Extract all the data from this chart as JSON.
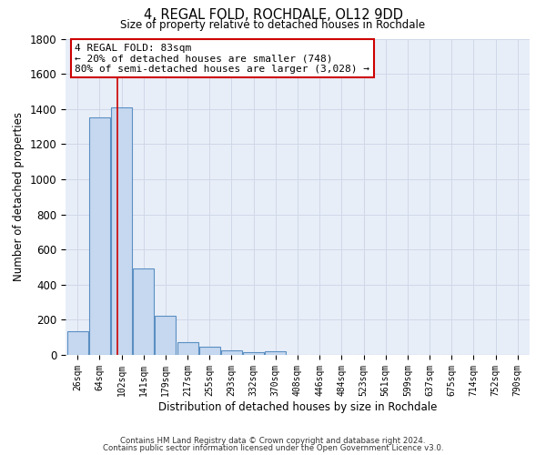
{
  "title": "4, REGAL FOLD, ROCHDALE, OL12 9DD",
  "subtitle": "Size of property relative to detached houses in Rochdale",
  "xlabel": "Distribution of detached houses by size in Rochdale",
  "ylabel": "Number of detached properties",
  "bar_values": [
    135,
    1350,
    1410,
    490,
    225,
    75,
    45,
    25,
    15,
    20,
    0,
    0,
    0,
    0,
    0,
    0,
    0,
    0,
    0,
    0,
    0
  ],
  "bar_labels": [
    "26sqm",
    "64sqm",
    "102sqm",
    "141sqm",
    "179sqm",
    "217sqm",
    "255sqm",
    "293sqm",
    "332sqm",
    "370sqm",
    "408sqm",
    "446sqm",
    "484sqm",
    "523sqm",
    "561sqm",
    "599sqm",
    "637sqm",
    "675sqm",
    "714sqm",
    "752sqm",
    "790sqm"
  ],
  "bar_color": "#c5d8f0",
  "bar_edge_color": "#5a8fc2",
  "grid_color": "#d0d8e8",
  "bg_color": "#e8eef8",
  "vline_x": 1.82,
  "annotation_line1": "4 REGAL FOLD: 83sqm",
  "annotation_line2": "← 20% of detached houses are smaller (748)",
  "annotation_line3": "80% of semi-detached houses are larger (3,028) →",
  "annotation_box_color": "white",
  "annotation_box_edge_color": "#cc0000",
  "ylim": [
    0,
    1800
  ],
  "yticks": [
    0,
    200,
    400,
    600,
    800,
    1000,
    1200,
    1400,
    1600,
    1800
  ],
  "footer1": "Contains HM Land Registry data © Crown copyright and database right 2024.",
  "footer2": "Contains public sector information licensed under the Open Government Licence v3.0."
}
